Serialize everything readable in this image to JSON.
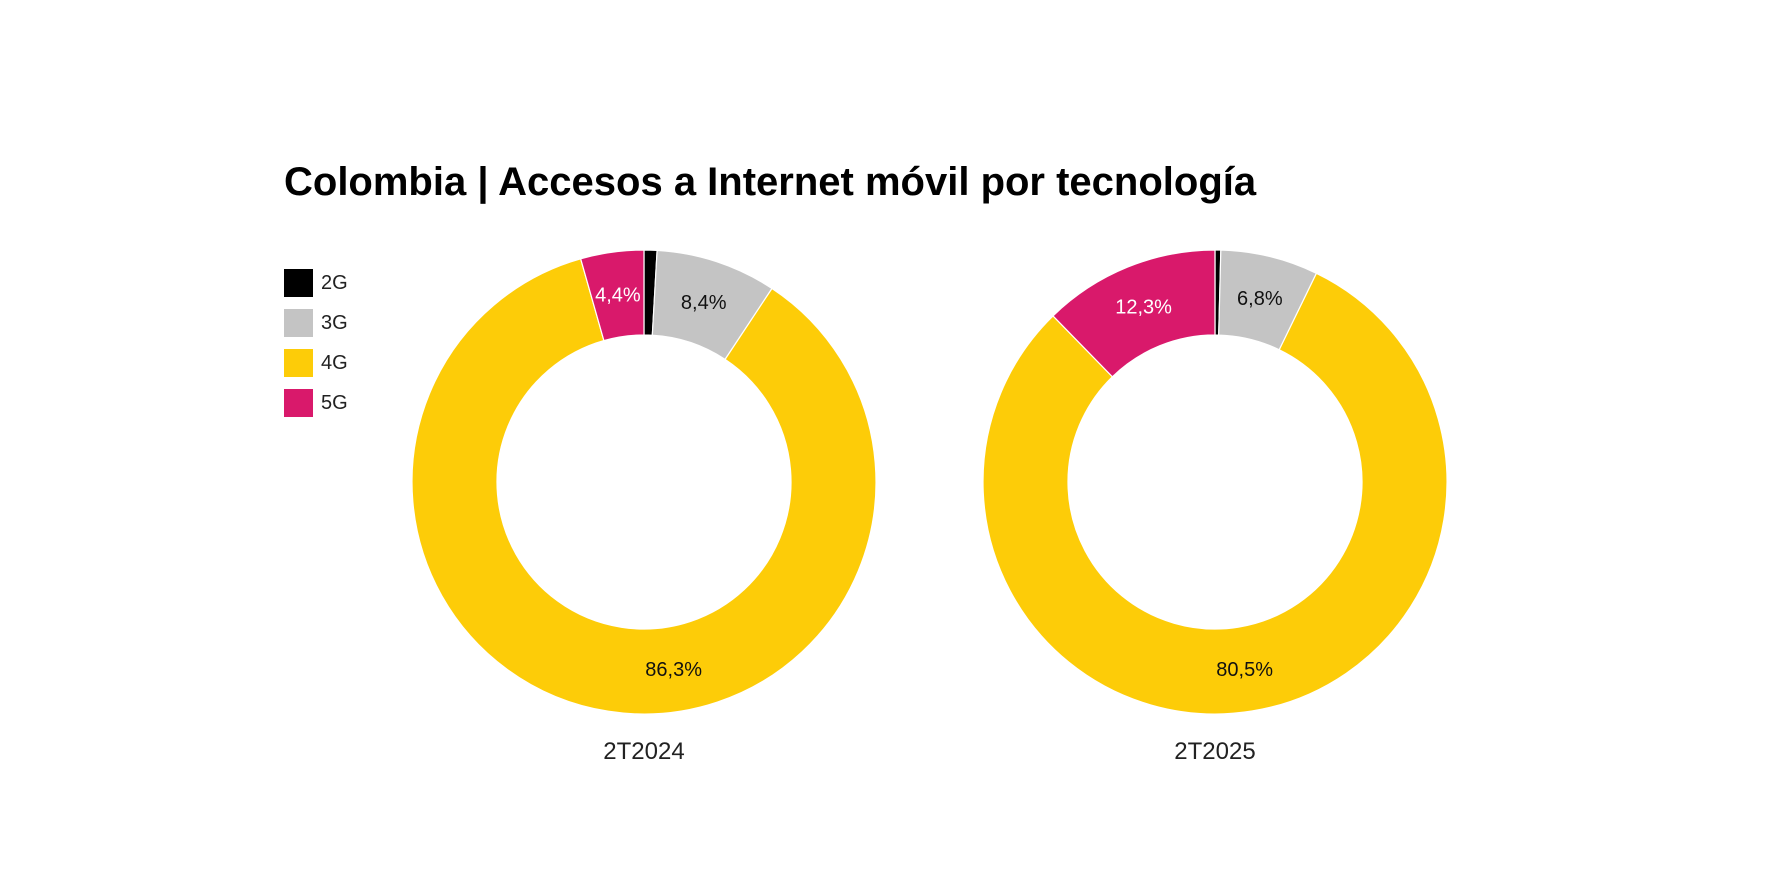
{
  "chart_data": {
    "type": "pie",
    "title": "Colombia | Accesos a Internet móvil por tecnología",
    "legend": {
      "placement": "top-left",
      "entries": [
        "2G",
        "3G",
        "4G",
        "5G"
      ]
    },
    "colors": {
      "2G": "#000000",
      "3G": "#c4c4c4",
      "4G": "#fdcc08",
      "5G": "#d9196b"
    },
    "charts": [
      {
        "label": "2T2024",
        "values": {
          "2G": 0.9,
          "3G": 8.4,
          "4G": 86.3,
          "5G": 4.4
        },
        "data_labels": {
          "3G": "8,4%",
          "4G": "86,3%",
          "5G": "4,4%"
        }
      },
      {
        "label": "2T2025",
        "values": {
          "2G": 0.4,
          "3G": 6.8,
          "4G": 80.5,
          "5G": 12.3
        },
        "data_labels": {
          "3G": "6,8%",
          "4G": "80,5%",
          "5G": "12,3%"
        }
      }
    ]
  }
}
